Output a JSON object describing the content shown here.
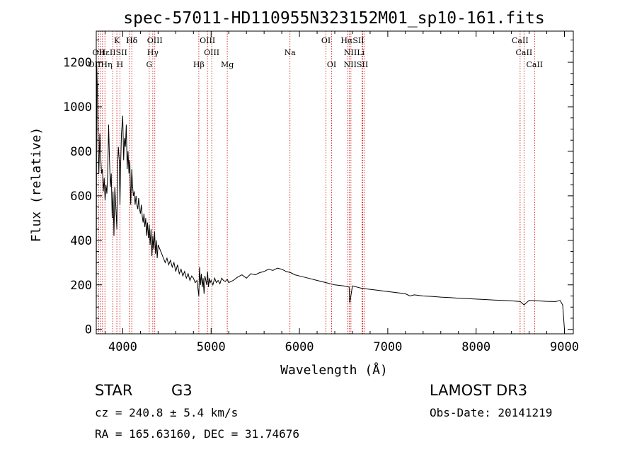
{
  "chart_data": {
    "type": "line",
    "title": "spec-57011-HD110955N323152M01_sp10-161.fits",
    "xlabel": "Wavelength (Å)",
    "ylabel": "Flux (relative)",
    "xlim": [
      3700,
      9100
    ],
    "ylim": [
      -20,
      1340
    ],
    "xticks": [
      4000,
      5000,
      6000,
      7000,
      8000,
      9000
    ],
    "yticks": [
      0,
      200,
      400,
      600,
      800,
      1000,
      1200
    ],
    "series": [
      {
        "name": "spectrum",
        "x": [
          3700,
          3705,
          3712,
          3720,
          3730,
          3740,
          3750,
          3760,
          3770,
          3780,
          3790,
          3800,
          3810,
          3820,
          3830,
          3840,
          3850,
          3860,
          3870,
          3880,
          3890,
          3900,
          3910,
          3920,
          3933,
          3940,
          3950,
          3960,
          3968,
          3975,
          3985,
          4000,
          4010,
          4020,
          4030,
          4040,
          4050,
          4060,
          4070,
          4080,
          4090,
          4102,
          4110,
          4120,
          4130,
          4140,
          4150,
          4160,
          4170,
          4180,
          4190,
          4200,
          4210,
          4220,
          4230,
          4240,
          4250,
          4260,
          4270,
          4280,
          4290,
          4300,
          4310,
          4320,
          4330,
          4340,
          4350,
          4360,
          4370,
          4380,
          4390,
          4400,
          4420,
          4440,
          4460,
          4480,
          4500,
          4520,
          4540,
          4560,
          4580,
          4600,
          4620,
          4640,
          4660,
          4680,
          4700,
          4720,
          4740,
          4760,
          4780,
          4800,
          4820,
          4840,
          4861,
          4870,
          4880,
          4890,
          4900,
          4910,
          4920,
          4930,
          4940,
          4950,
          4960,
          4970,
          4980,
          4990,
          5000,
          5020,
          5040,
          5060,
          5080,
          5100,
          5120,
          5140,
          5160,
          5183,
          5200,
          5250,
          5300,
          5350,
          5400,
          5450,
          5500,
          5550,
          5600,
          5650,
          5700,
          5750,
          5800,
          5850,
          5900,
          5950,
          6000,
          6100,
          6200,
          6300,
          6400,
          6500,
          6563,
          6570,
          6600,
          6700,
          6800,
          6900,
          7000,
          7100,
          7200,
          7250,
          7300,
          7400,
          7500,
          7600,
          7700,
          7800,
          7900,
          8000,
          8100,
          8200,
          8300,
          8400,
          8500,
          8542,
          8600,
          8700,
          8800,
          8900,
          8950,
          8980,
          9000
        ],
        "y": [
          50,
          1200,
          1090,
          820,
          700,
          880,
          780,
          700,
          720,
          620,
          680,
          580,
          650,
          610,
          700,
          920,
          760,
          640,
          700,
          500,
          620,
          420,
          640,
          560,
          450,
          720,
          820,
          760,
          560,
          720,
          880,
          960,
          760,
          860,
          820,
          920,
          720,
          800,
          700,
          760,
          560,
          720,
          650,
          600,
          620,
          560,
          600,
          560,
          540,
          590,
          540,
          520,
          560,
          510,
          480,
          520,
          460,
          500,
          420,
          480,
          410,
          470,
          380,
          450,
          330,
          420,
          360,
          440,
          340,
          400,
          320,
          380,
          360,
          340,
          320,
          300,
          320,
          290,
          310,
          280,
          300,
          260,
          290,
          250,
          270,
          240,
          260,
          230,
          250,
          220,
          240,
          230,
          210,
          220,
          150,
          280,
          200,
          250,
          190,
          230,
          160,
          240,
          220,
          200,
          260,
          190,
          230,
          210,
          220,
          200,
          230,
          210,
          220,
          205,
          230,
          220,
          215,
          225,
          210,
          220,
          235,
          245,
          230,
          250,
          245,
          255,
          260,
          270,
          265,
          275,
          270,
          260,
          255,
          245,
          240,
          230,
          220,
          210,
          200,
          195,
          190,
          120,
          195,
          185,
          180,
          175,
          170,
          165,
          160,
          150,
          155,
          150,
          148,
          145,
          143,
          140,
          138,
          136,
          134,
          132,
          130,
          128,
          125,
          110,
          130,
          128,
          126,
          125,
          130,
          110,
          0
        ]
      }
    ],
    "lines": [
      {
        "wl": 3727,
        "label": "OII"
      },
      {
        "wl": 3750,
        "label": "OII"
      },
      {
        "wl": 3771,
        "label": "Hη"
      },
      {
        "wl": 3798,
        "label": "Hη"
      },
      {
        "wl": 3889,
        "label": "Hε"
      },
      {
        "wl": 3933,
        "label": "K"
      },
      {
        "wl": 3968,
        "label": "H"
      },
      {
        "wl": 4072,
        "label": "SII"
      },
      {
        "wl": 4102,
        "label": "Hδ"
      },
      {
        "wl": 4300,
        "label": "G"
      },
      {
        "wl": 4340,
        "label": "Hγ"
      },
      {
        "wl": 4363,
        "label": "OIII"
      },
      {
        "wl": 4861,
        "label": "Hβ"
      },
      {
        "wl": 4959,
        "label": "OIII"
      },
      {
        "wl": 5007,
        "label": "OIII"
      },
      {
        "wl": 5183,
        "label": "Mg"
      },
      {
        "wl": 5893,
        "label": "Na"
      },
      {
        "wl": 6300,
        "label": "OI"
      },
      {
        "wl": 6364,
        "label": "OI"
      },
      {
        "wl": 6548,
        "label": "NII"
      },
      {
        "wl": 6563,
        "label": "Hα"
      },
      {
        "wl": 6583,
        "label": "NII"
      },
      {
        "wl": 6708,
        "label": "Li"
      },
      {
        "wl": 6717,
        "label": "SII"
      },
      {
        "wl": 6731,
        "label": "SII"
      },
      {
        "wl": 8498,
        "label": "CaII"
      },
      {
        "wl": 8542,
        "label": "CaII"
      },
      {
        "wl": 8662,
        "label": "CaII"
      }
    ],
    "line_labels": [
      {
        "text": "Hδ",
        "x": 4102,
        "row": 0
      },
      {
        "text": "K",
        "x": 3933,
        "row": 0
      },
      {
        "text": "Hδ",
        "x": 4102,
        "row": 0
      },
      {
        "text": "OIII",
        "x": 4363,
        "row": 0
      },
      {
        "text": "OIII",
        "x": 4959,
        "row": 0
      },
      {
        "text": "OI",
        "x": 6300,
        "row": 0
      },
      {
        "text": "HαSII",
        "x": 6600,
        "row": 0
      },
      {
        "text": "CaII",
        "x": 8498,
        "row": 0
      },
      {
        "text": "OII",
        "x": 3727,
        "row": 1
      },
      {
        "text": "HεIISII",
        "x": 3890,
        "row": 1
      },
      {
        "text": "Hγ",
        "x": 4340,
        "row": 1
      },
      {
        "text": "OIII",
        "x": 5007,
        "row": 1
      },
      {
        "text": "Na",
        "x": 5893,
        "row": 1
      },
      {
        "text": "NIILi",
        "x": 6620,
        "row": 1
      },
      {
        "text": "CaII",
        "x": 8542,
        "row": 1
      },
      {
        "text": "OIIHη",
        "x": 3745,
        "row": 2
      },
      {
        "text": "H",
        "x": 3968,
        "row": 2
      },
      {
        "text": "G",
        "x": 4300,
        "row": 2
      },
      {
        "text": "Hβ",
        "x": 4861,
        "row": 2
      },
      {
        "text": "Mg",
        "x": 5183,
        "row": 2
      },
      {
        "text": "OI",
        "x": 6364,
        "row": 2
      },
      {
        "text": "NIISII",
        "x": 6640,
        "row": 2
      },
      {
        "text": "CaII",
        "x": 8662,
        "row": 2
      }
    ],
    "colors": {
      "spectrum": "#000000",
      "lines": "#cc0000",
      "axes": "#000000"
    }
  },
  "footer": {
    "class": "STAR",
    "subclass": "G3",
    "survey": "LAMOST DR3",
    "cz": "cz = 240.8 ± 5.4 km/s",
    "obs_date": "Obs-Date: 20141219",
    "coords": "RA = 165.63160, DEC =  31.74676"
  }
}
